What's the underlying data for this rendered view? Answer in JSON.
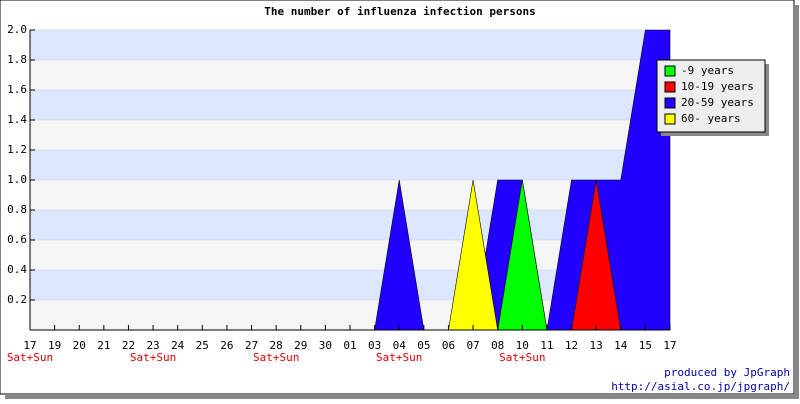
{
  "chart_data": {
    "type": "area",
    "title": "The number of influenza infection persons",
    "categories": [
      "17",
      "19",
      "20",
      "21",
      "22",
      "23",
      "24",
      "25",
      "26",
      "27",
      "28",
      "29",
      "30",
      "01",
      "03",
      "04",
      "05",
      "06",
      "07",
      "08",
      "10",
      "11",
      "12",
      "13",
      "14",
      "15",
      "17"
    ],
    "sublabels": [
      "Sat+Sun",
      null,
      null,
      null,
      null,
      "Sat+Sun",
      null,
      null,
      null,
      null,
      "Sat+Sun",
      null,
      null,
      null,
      null,
      "Sat+Sun",
      null,
      null,
      null,
      null,
      "Sat+Sun",
      null,
      null,
      null,
      null,
      null,
      null
    ],
    "series": [
      {
        "name": "-9 years",
        "color": "#00ff00",
        "values": [
          0,
          0,
          0,
          0,
          0,
          0,
          0,
          0,
          0,
          0,
          0,
          0,
          0,
          0,
          0,
          0,
          0,
          0,
          0,
          0,
          1,
          0,
          0,
          0,
          0,
          0,
          0
        ]
      },
      {
        "name": "10-19 years",
        "color": "#ff0000",
        "values": [
          0,
          0,
          0,
          0,
          0,
          0,
          0,
          0,
          0,
          0,
          0,
          0,
          0,
          0,
          0,
          0,
          0,
          0,
          0,
          0,
          0,
          0,
          0,
          1,
          0,
          0,
          0
        ]
      },
      {
        "name": "20-59 years",
        "color": "#2200ff",
        "values": [
          0,
          0,
          0,
          0,
          0,
          0,
          0,
          0,
          0,
          0,
          0,
          0,
          0,
          0,
          0,
          1,
          0,
          0,
          0,
          1,
          1,
          0,
          1,
          1,
          1,
          2,
          2
        ]
      },
      {
        "name": "60- years",
        "color": "#ffff00",
        "values": [
          0,
          0,
          0,
          0,
          0,
          0,
          0,
          0,
          0,
          0,
          0,
          0,
          0,
          0,
          0,
          0,
          0,
          0,
          1,
          0,
          0,
          0,
          0,
          0,
          0,
          0,
          0
        ]
      }
    ],
    "ylim": [
      0,
      2
    ],
    "yticks": [
      0.2,
      0.4,
      0.6,
      0.8,
      {
        "value": 1,
        "label": "1.0"
      },
      1.2,
      1.4,
      1.6,
      1.8,
      {
        "value": 2,
        "label": "2.0"
      }
    ],
    "legend": "upper right",
    "footer": [
      "produced by JpGraph",
      "http://asial.co.jp/jpgraph/"
    ]
  }
}
